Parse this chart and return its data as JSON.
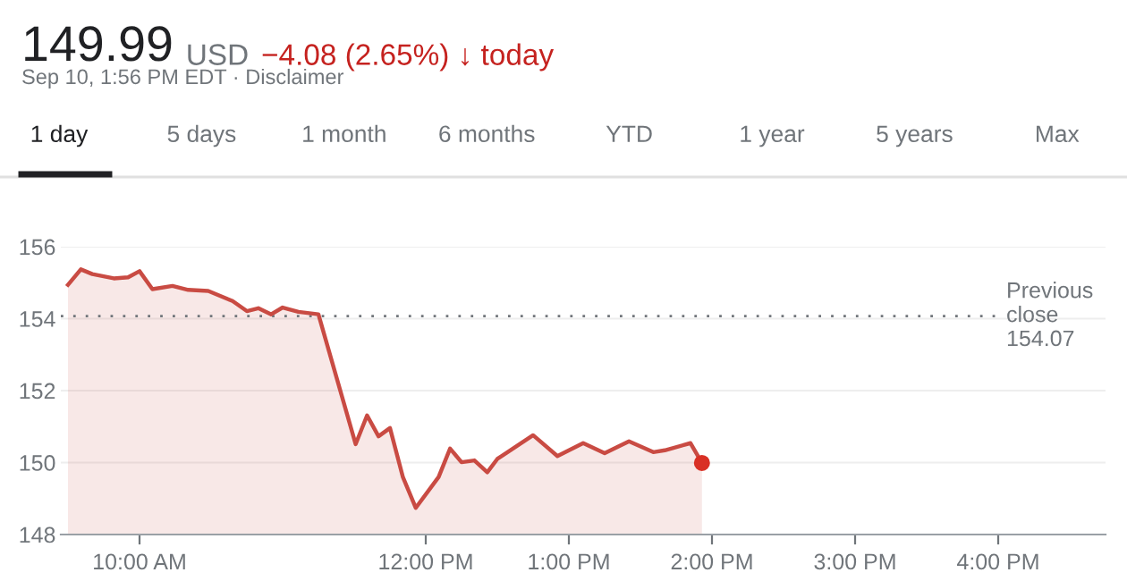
{
  "chart_data": {
    "type": "area",
    "title": "149.99",
    "subtitle": "Sep 10, 1:56 PM EDT · Disclaimer",
    "annotations": [
      "USD",
      "−4.08 (2.65%) ↓ today",
      "1 day",
      "5 days",
      "1 month",
      "6 months",
      "YTD",
      "1 year",
      "5 years",
      "Max"
    ],
    "series": [
      {
        "color": "#c94b43",
        "x": [
          9.5,
          9.59,
          9.67,
          9.82,
          9.92,
          10.0,
          10.09,
          10.23,
          10.34,
          10.48,
          10.65,
          10.75,
          10.83,
          10.92,
          11.0,
          11.11,
          11.25,
          11.51,
          11.59,
          11.67,
          11.75,
          11.84,
          11.93,
          12.09,
          12.17,
          12.25,
          12.34,
          12.43,
          12.5,
          12.75,
          12.92,
          13.1,
          13.25,
          13.42,
          13.59,
          13.67,
          13.85,
          13.93
        ],
        "values": [
          154.94,
          155.37,
          155.24,
          155.12,
          155.15,
          155.32,
          154.82,
          154.91,
          154.8,
          154.77,
          154.49,
          154.21,
          154.29,
          154.12,
          154.31,
          154.19,
          154.12,
          150.51,
          151.31,
          150.73,
          150.96,
          149.6,
          148.74,
          149.6,
          150.39,
          150.01,
          150.06,
          149.73,
          150.1,
          150.76,
          150.18,
          150.54,
          150.26,
          150.59,
          150.29,
          150.34,
          150.54,
          149.99
        ]
      },
      {
        "type": "scatter",
        "color": "#d93025",
        "marker": "circle",
        "x": [
          13.93
        ],
        "values": [
          149.99
        ]
      }
    ],
    "ref_lines": [
      {
        "axis": "y",
        "value": 154.07,
        "label": "Previous\nclose\n154.07",
        "color": "#70757a",
        "line_style": "dotted"
      }
    ],
    "xlim": [
      9.45,
      16.75
    ],
    "xticks": [
      {
        "value": 10,
        "label": "10:00 AM"
      },
      {
        "value": 12,
        "label": "12:00 PM"
      },
      {
        "value": 13,
        "label": "1:00 PM"
      },
      {
        "value": 14,
        "label": "2:00 PM"
      },
      {
        "value": 15,
        "label": "3:00 PM"
      },
      {
        "value": 16,
        "label": "4:00 PM"
      }
    ],
    "ylim": [
      148,
      156
    ],
    "yticks": [
      148,
      150,
      152,
      154,
      156
    ],
    "grid": "y",
    "legend": false
  }
}
